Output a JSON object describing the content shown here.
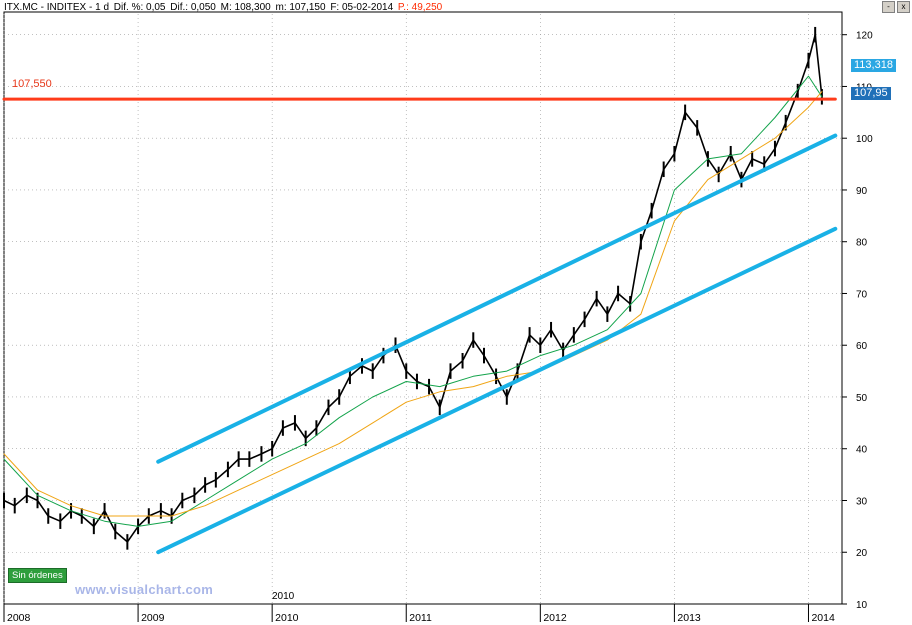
{
  "header": {
    "symbol": "ITX.MC - INDITEX - 1 d",
    "dif_pct": "Dif. %: 0,05",
    "dif": "Dif.: 0,050",
    "max": "M: 108,300",
    "last": "m: 107,150",
    "date": "F: 05-02-2014",
    "p": "P.: 49,250"
  },
  "window_buttons": [
    "-",
    "x"
  ],
  "status_label": "Sin órdenes",
  "watermark": "www.visualchart.com",
  "sub_label": "2010",
  "price_tags": {
    "upper": "113,318",
    "lower": "107,95",
    "hline_label": "107,550"
  },
  "colors": {
    "price": "#000000",
    "ma_fast": "#13a34b",
    "ma_slow": "#f0a515",
    "channel": "#19b1e6",
    "hline": "#ff3b1a",
    "tag_bg": "#2aa7e3"
  },
  "chart_data": {
    "type": "line",
    "title": "",
    "xlabel": "",
    "ylabel": "",
    "x_ticks": [
      "2008",
      "2009",
      "2010",
      "2011",
      "2012",
      "2013",
      "2014"
    ],
    "y_ticks": [
      10,
      20,
      30,
      40,
      50,
      60,
      70,
      80,
      90,
      100,
      110,
      120
    ],
    "xlim": [
      2008.0,
      2014.25
    ],
    "ylim": [
      10,
      124
    ],
    "grid": true,
    "series": [
      {
        "role": "price",
        "x": [
          2008.0,
          2008.08,
          2008.17,
          2008.25,
          2008.33,
          2008.42,
          2008.5,
          2008.58,
          2008.67,
          2008.75,
          2008.83,
          2008.92,
          2009.0,
          2009.08,
          2009.17,
          2009.25,
          2009.33,
          2009.42,
          2009.5,
          2009.58,
          2009.67,
          2009.75,
          2009.83,
          2009.92,
          2010.0,
          2010.08,
          2010.17,
          2010.25,
          2010.33,
          2010.42,
          2010.5,
          2010.58,
          2010.67,
          2010.75,
          2010.83,
          2010.92,
          2011.0,
          2011.08,
          2011.17,
          2011.25,
          2011.33,
          2011.42,
          2011.5,
          2011.58,
          2011.67,
          2011.75,
          2011.83,
          2011.92,
          2012.0,
          2012.08,
          2012.17,
          2012.25,
          2012.33,
          2012.42,
          2012.5,
          2012.58,
          2012.67,
          2012.75,
          2012.83,
          2012.92,
          2013.0,
          2013.08,
          2013.17,
          2013.25,
          2013.33,
          2013.42,
          2013.5,
          2013.58,
          2013.67,
          2013.75,
          2013.83,
          2013.92,
          2014.0,
          2014.05,
          2014.1
        ],
        "y": [
          30,
          29,
          31,
          30,
          27,
          26,
          28,
          27,
          25,
          28,
          24,
          22,
          25,
          27,
          28,
          27,
          30,
          31,
          33,
          34,
          36,
          38,
          38,
          39,
          40,
          44,
          45,
          42,
          44,
          48,
          50,
          54,
          56,
          55,
          58,
          60,
          55,
          53,
          52,
          48,
          55,
          57,
          61,
          58,
          54,
          50,
          55,
          62,
          60,
          63,
          59,
          62,
          65,
          69,
          66,
          70,
          68,
          80,
          86,
          94,
          97,
          105,
          102,
          96,
          93,
          97,
          92,
          96,
          95,
          98,
          103,
          109,
          115,
          120,
          108
        ]
      },
      {
        "role": "ma_fast",
        "x": [
          2008.0,
          2008.25,
          2008.5,
          2008.75,
          2009.0,
          2009.25,
          2009.5,
          2009.75,
          2010.0,
          2010.25,
          2010.5,
          2010.75,
          2011.0,
          2011.25,
          2011.5,
          2011.75,
          2012.0,
          2012.25,
          2012.5,
          2012.75,
          2013.0,
          2013.25,
          2013.5,
          2013.75,
          2014.0,
          2014.1
        ],
        "y": [
          38,
          31,
          28,
          26,
          25,
          26,
          30,
          34,
          38,
          41,
          46,
          50,
          53,
          52,
          54,
          55,
          58,
          60,
          63,
          70,
          90,
          96,
          97,
          104,
          112,
          108
        ]
      },
      {
        "role": "ma_slow",
        "x": [
          2008.0,
          2008.25,
          2008.5,
          2008.75,
          2009.0,
          2009.25,
          2009.5,
          2009.75,
          2010.0,
          2010.25,
          2010.5,
          2010.75,
          2011.0,
          2011.25,
          2011.5,
          2011.75,
          2012.0,
          2012.25,
          2012.5,
          2012.75,
          2013.0,
          2013.25,
          2013.5,
          2013.75,
          2014.0,
          2014.1
        ],
        "y": [
          39,
          32,
          29,
          27,
          27,
          27,
          29,
          32,
          35,
          38,
          41,
          45,
          49,
          51,
          52,
          54,
          55,
          58,
          61,
          66,
          84,
          92,
          96,
          100,
          106,
          109
        ]
      },
      {
        "role": "channel_upper",
        "x": [
          2009.15,
          2014.2
        ],
        "y": [
          37.5,
          100.5
        ]
      },
      {
        "role": "channel_lower",
        "x": [
          2009.15,
          2014.2
        ],
        "y": [
          20,
          82.5
        ]
      },
      {
        "role": "hline",
        "x": [
          2008.0,
          2014.2
        ],
        "y": [
          107.55,
          107.55
        ]
      }
    ]
  }
}
